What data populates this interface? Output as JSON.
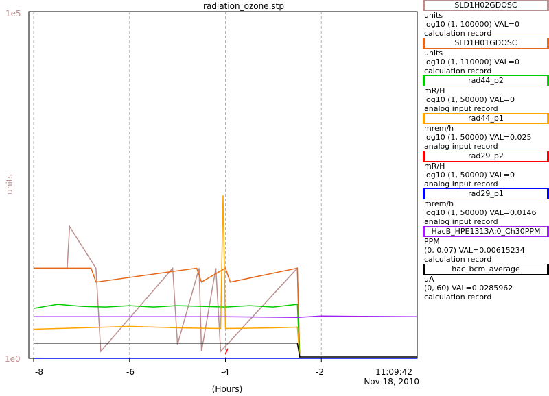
{
  "window": {
    "title": "radiation_ozone.stp"
  },
  "chart_data": {
    "type": "line",
    "title": "radiation_ozone.stp",
    "xlabel": "(Hours)",
    "ylabel": "units",
    "y_scale": "log10",
    "y_top_label": "1e5",
    "y_bottom_label": "1e0",
    "xlim": [
      -8.1,
      0.0
    ],
    "x_ticks": [
      -8,
      -6,
      -4,
      -2
    ],
    "x_tick_labels": [
      "-8",
      "-6",
      "-4",
      "-2"
    ],
    "end_time": "11:09:42",
    "end_date": "Nov 18, 2010",
    "grid": true,
    "series": [
      {
        "name": "SLD1H02GDOSC",
        "color": "#bc8f8f",
        "unit": "units",
        "range": "log10 (1, 100000)",
        "value": "VAL=0",
        "record": "calculation record",
        "x": [
          -8.0,
          -7.3,
          -7.25,
          -6.7,
          -6.6,
          -5.1,
          -5.0,
          -4.55,
          -4.5,
          -4.2,
          -4.1,
          -2.5,
          -2.45
        ],
        "y": [
          1.3,
          1.3,
          1.9,
          1.3,
          0.1,
          1.3,
          0.2,
          1.3,
          0.1,
          1.3,
          0.1,
          1.3,
          0
        ]
      },
      {
        "name": "SLD1H01GDOSC",
        "color": "#e56717",
        "unit": "units",
        "range": "log10 (1, 110000)",
        "value": "VAL=0",
        "record": "calculation record",
        "x": [
          -8.0,
          -6.8,
          -6.7,
          -4.6,
          -4.5,
          -4.0,
          -3.9,
          -2.5,
          -2.45
        ],
        "y": [
          1.3,
          1.3,
          1.1,
          1.3,
          1.1,
          1.3,
          1.1,
          1.3,
          0
        ]
      },
      {
        "name": "rad44_p2",
        "color": "#00cc00",
        "unit": "mR/H",
        "range": "log10 (1, 50000)",
        "value": "VAL=0",
        "record": "analog input record",
        "x": [
          -8.0,
          -7.5,
          -7.0,
          -6.5,
          -6.0,
          -5.5,
          -5.0,
          -4.5,
          -4.0,
          -3.5,
          -3.0,
          -2.5,
          -2.45
        ],
        "y": [
          0.72,
          0.78,
          0.75,
          0.74,
          0.76,
          0.74,
          0.76,
          0.75,
          0.74,
          0.76,
          0.74,
          0.78,
          0
        ]
      },
      {
        "name": "rad44_p1",
        "color": "#ffa500",
        "unit": "mrem/h",
        "range": "log10 (1, 50000)",
        "value": "VAL=0.025",
        "record": "analog input record",
        "x": [
          -8.0,
          -7.0,
          -6.5,
          -6.0,
          -5.0,
          -4.1,
          -4.05,
          -4.0,
          -3.0,
          -2.5,
          -2.45
        ],
        "y": [
          0.42,
          0.44,
          0.45,
          0.46,
          0.44,
          0.43,
          2.35,
          0.43,
          0.44,
          0.45,
          0
        ]
      },
      {
        "name": "rad29_p2",
        "color": "#ff0000",
        "unit": "mR/H",
        "range": "log10 (1, 50000)",
        "value": "VAL=0",
        "record": "analog input record",
        "x": [
          -4.0,
          -3.95
        ],
        "y": [
          0.06,
          0.14
        ]
      },
      {
        "name": "rad29_p1",
        "color": "#0000ff",
        "unit": "mrem/h",
        "range": "log10 (1, 50000)",
        "value": "VAL=0.0146",
        "record": "analog input record",
        "x": [
          -8.0,
          0.0
        ],
        "y": [
          0,
          0
        ]
      },
      {
        "name": "HacB_HPE1313A:0_Ch30PPM",
        "color": "#a020f0",
        "unit": "PPM",
        "range": "(0, 0.07)",
        "value": "VAL=0.00615234",
        "record": "calculation record",
        "x": [
          -8.0,
          -6.0,
          -4.0,
          -2.5,
          -2.0,
          0.0
        ],
        "y": [
          0.6,
          0.6,
          0.6,
          0.59,
          0.61,
          0.6
        ]
      },
      {
        "name": "hac_bcm_average",
        "color": "#000000",
        "unit": "uA",
        "range": "(0, 60)",
        "value": "VAL=0.0285962",
        "record": "calculation record",
        "x": [
          -8.0,
          -6.0,
          -4.0,
          -2.5,
          -2.45,
          0.0
        ],
        "y": [
          0.22,
          0.22,
          0.22,
          0.22,
          0.02,
          0.02
        ]
      }
    ]
  }
}
